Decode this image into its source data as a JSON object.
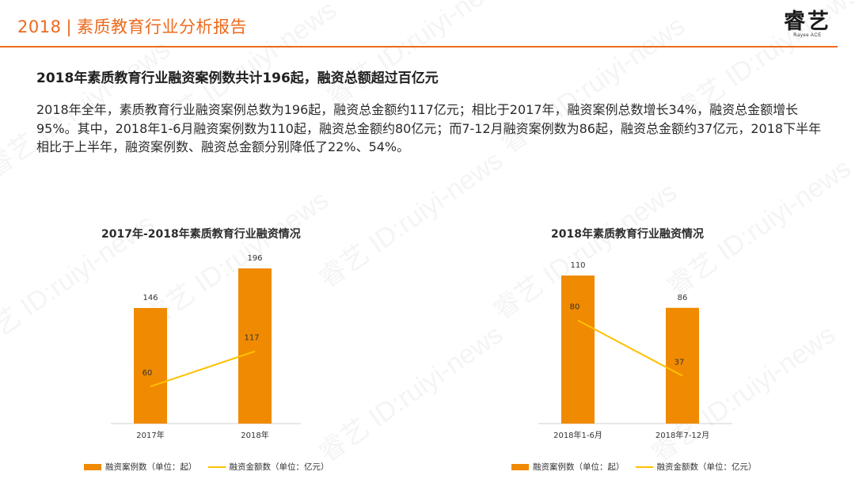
{
  "header": {
    "year": "2018",
    "separator": "|",
    "title": "素质教育行业分析报告",
    "accent_color": "#ec6a1c"
  },
  "logo": {
    "mark": "睿艺",
    "sub": "Rayee ACE"
  },
  "headline": "2018年素质教育行业融资案例数共计196起，融资总额超过百亿元",
  "body": "2018年全年，素质教育行业融资案例总数为196起，融资总金额约117亿元；相比于2017年，融资案例总数增长34%，融资总金额增长95%。其中，2018年1-6月融资案例数为110起，融资总金额约80亿元；而7-12月融资案例数为86起，融资总金额约37亿元，2018下半年相比于上半年，融资案例数、融资总金额分别降低了22%、54%。",
  "watermark_text": "睿艺 ID:ruiyi-news",
  "chart_data": [
    {
      "type": "bar",
      "title": "2017年-2018年素质教育行业融资情况",
      "categories": [
        "2017年",
        "2018年"
      ],
      "series": [
        {
          "name": "融资案例数（单位：起）",
          "type": "bar",
          "values": [
            146,
            196
          ],
          "color": "#f08a00"
        },
        {
          "name": "融资金额数（单位：亿元）",
          "type": "line",
          "values": [
            60,
            117
          ],
          "color": "#ffc000"
        }
      ],
      "legend": "bottom"
    },
    {
      "type": "bar",
      "title": "2018年素质教育行业融资情况",
      "categories": [
        "2018年1-6月",
        "2018年7-12月"
      ],
      "series": [
        {
          "name": "融资案例数（单位：起）",
          "type": "bar",
          "values": [
            110,
            86
          ],
          "color": "#f08a00"
        },
        {
          "name": "融资金额数（单位：亿元）",
          "type": "line",
          "values": [
            80,
            37
          ],
          "color": "#ffc000"
        }
      ],
      "legend": "bottom"
    }
  ]
}
